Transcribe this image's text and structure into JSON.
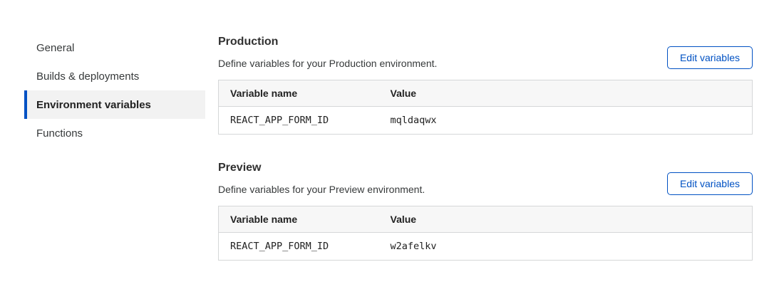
{
  "sidebar": {
    "items": [
      {
        "label": "General",
        "active": false
      },
      {
        "label": "Builds & deployments",
        "active": false
      },
      {
        "label": "Environment variables",
        "active": true
      },
      {
        "label": "Functions",
        "active": false
      }
    ]
  },
  "sections": [
    {
      "title": "Production",
      "description": "Define variables for your Production environment.",
      "edit_button_label": "Edit variables",
      "table": {
        "headers": [
          "Variable name",
          "Value"
        ],
        "rows": [
          {
            "name": "REACT_APP_FORM_ID",
            "value": "mqldaqwx"
          }
        ]
      }
    },
    {
      "title": "Preview",
      "description": "Define variables for your Preview environment.",
      "edit_button_label": "Edit variables",
      "table": {
        "headers": [
          "Variable name",
          "Value"
        ],
        "rows": [
          {
            "name": "REACT_APP_FORM_ID",
            "value": "w2afelkv"
          }
        ]
      }
    }
  ],
  "colors": {
    "accent_blue": "#0051c3",
    "active_item_bg": "#f2f2f2",
    "table_header_bg": "#f7f7f7",
    "table_border": "#d5d7d8",
    "text_primary": "#313131"
  }
}
